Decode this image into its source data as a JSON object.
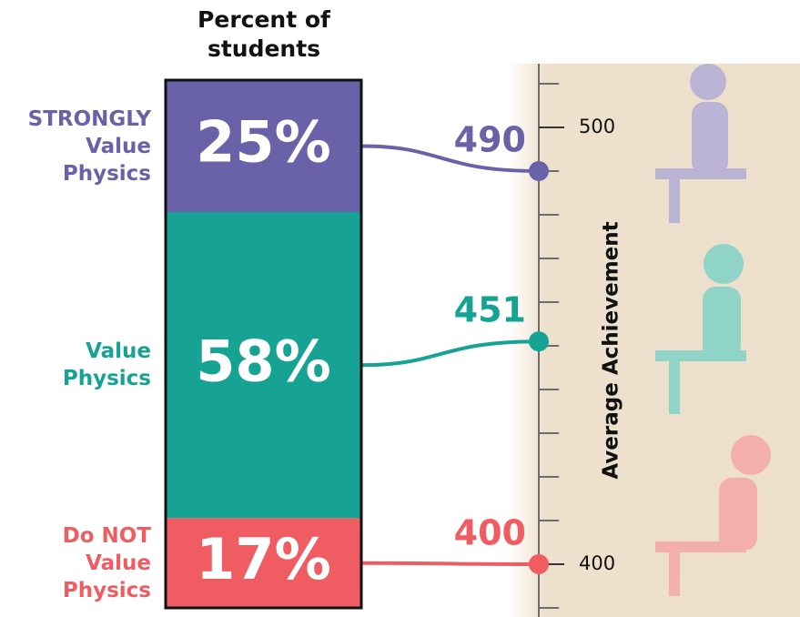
{
  "chart_data": {
    "type": "bar",
    "title": "Percent of students",
    "categories": [
      "STRONGLY Value Physics",
      "Value Physics",
      "Do NOT Value Physics"
    ],
    "values": [
      25,
      58,
      17
    ],
    "value_labels": [
      "25%",
      "58%",
      "17%"
    ],
    "colors": [
      "#6a62a8",
      "#17a393",
      "#ef5d63"
    ],
    "achievement": {
      "axis_label": "Average Achievement",
      "values": [
        490,
        451,
        400
      ],
      "ylim": [
        390,
        510
      ],
      "yticks": [
        400,
        500
      ],
      "minor_ticks": [
        390,
        400,
        410,
        420,
        430,
        440,
        450,
        460,
        470,
        480,
        490,
        500,
        510
      ]
    }
  }
}
